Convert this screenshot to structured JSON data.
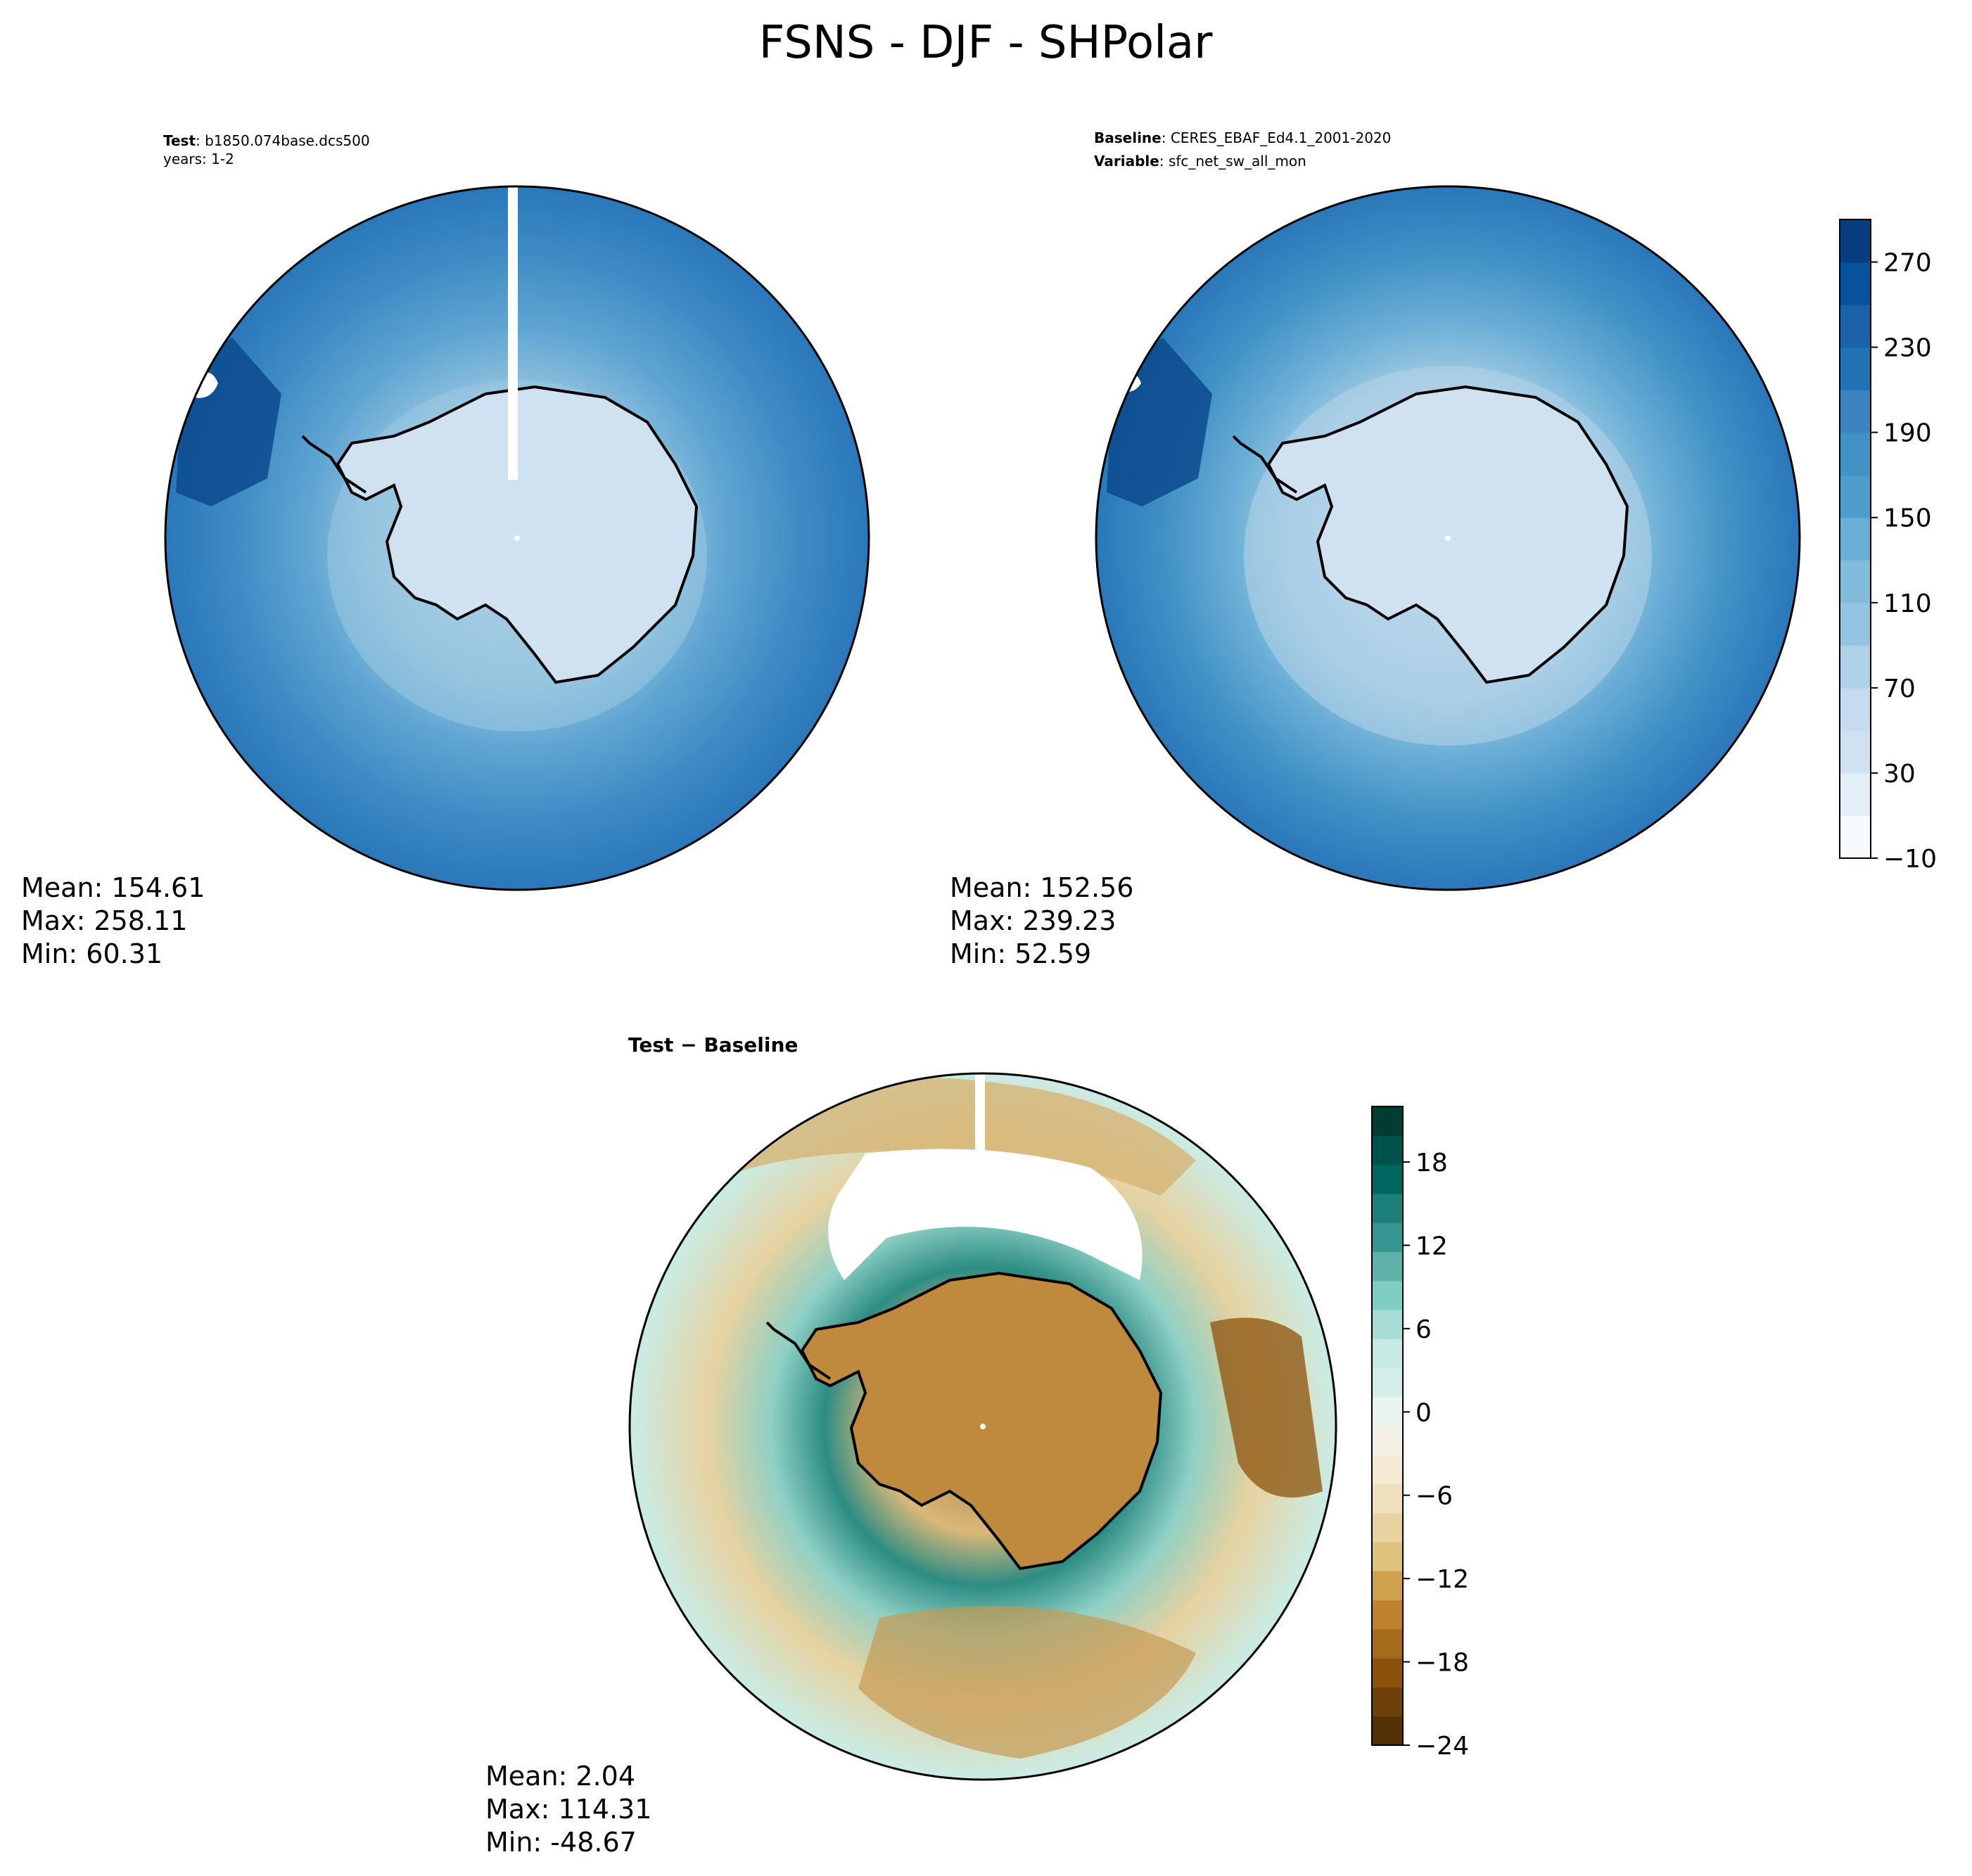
{
  "title": "FSNS - DJF - SHPolar",
  "panels": [
    {
      "id": "test",
      "header": [
        {
          "bold": "Test",
          "sep": ": ",
          "text": "b1850.074base.dcs500"
        },
        {
          "bold": "",
          "sep": "",
          "text": "years: 1-2"
        }
      ],
      "stats": {
        "mean": "Mean: 154.61",
        "max": "Max: 258.11",
        "min": "Min: 60.31"
      }
    },
    {
      "id": "baseline",
      "header": [
        {
          "bold": "Baseline",
          "sep": ": ",
          "text": "CERES_EBAF_Ed4.1_2001-2020"
        },
        {
          "bold": "Variable",
          "sep": ": ",
          "text": "sfc_net_sw_all_mon"
        }
      ],
      "stats": {
        "mean": "Mean: 152.56",
        "max": "Max: 239.23",
        "min": "Min: 52.59"
      }
    },
    {
      "id": "diff",
      "header": [
        {
          "bold": "Test − Baseline",
          "sep": "",
          "text": ""
        }
      ],
      "stats": {
        "mean": "Mean:  2.04",
        "max": "Max: 114.31",
        "min": "Min: -48.67"
      }
    }
  ],
  "chart_data": [
    {
      "type": "heatmap",
      "name": "test-map",
      "projection": "south-polar-stereographic",
      "colormap": "Blues",
      "legend": "colorbar shared with baseline map (right)",
      "levels": [
        -10,
        10,
        30,
        50,
        70,
        90,
        110,
        130,
        150,
        170,
        190,
        210,
        230,
        250,
        270,
        290
      ],
      "description_values": {
        "mean": 154.61,
        "max": 258.11,
        "min": 60.31
      }
    },
    {
      "type": "heatmap",
      "name": "baseline-map",
      "projection": "south-polar-stereographic",
      "colormap": "Blues",
      "colorbar": {
        "range": [
          -10,
          290
        ],
        "ticks": [
          -10,
          30,
          70,
          110,
          150,
          190,
          230,
          270
        ],
        "tick_labels": [
          "−10",
          "30",
          "70",
          "110",
          "150",
          "190",
          "230",
          "270"
        ],
        "colors": [
          "#f7fbff",
          "#e3eef9",
          "#d0e1f2",
          "#c6dbef",
          "#b0d2e8",
          "#94c4df",
          "#83bbdb",
          "#6baed6",
          "#4f9bcb",
          "#4292c6",
          "#3b84c0",
          "#2171b5",
          "#1b62a9",
          "#08519c",
          "#083d7f"
        ]
      },
      "description_values": {
        "mean": 152.56,
        "max": 239.23,
        "min": 52.59
      }
    },
    {
      "type": "heatmap",
      "name": "difference-map",
      "projection": "south-polar-stereographic",
      "colormap": "BrBG",
      "colorbar": {
        "range": [
          -24,
          22
        ],
        "ticks": [
          -24,
          -18,
          -12,
          -6,
          0,
          6,
          12,
          18
        ],
        "tick_labels": [
          "−24",
          "−18",
          "−12",
          "−6",
          "0",
          "6",
          "12",
          "18"
        ],
        "colors": [
          "#543005",
          "#6e400a",
          "#8c510a",
          "#a66a1c",
          "#bf812d",
          "#cfa04e",
          "#dfc27d",
          "#e8d3a0",
          "#f0e1bc",
          "#f6ebd2",
          "#f5f0e6",
          "#e9f4f2",
          "#d4eee9",
          "#c7eae5",
          "#a7ddd5",
          "#80cdc1",
          "#5fb2a8",
          "#35978f",
          "#1d8078",
          "#01665e",
          "#01524a",
          "#003c30"
        ]
      },
      "description_values": {
        "mean": 2.04,
        "max": 114.31,
        "min": -48.67
      }
    }
  ]
}
